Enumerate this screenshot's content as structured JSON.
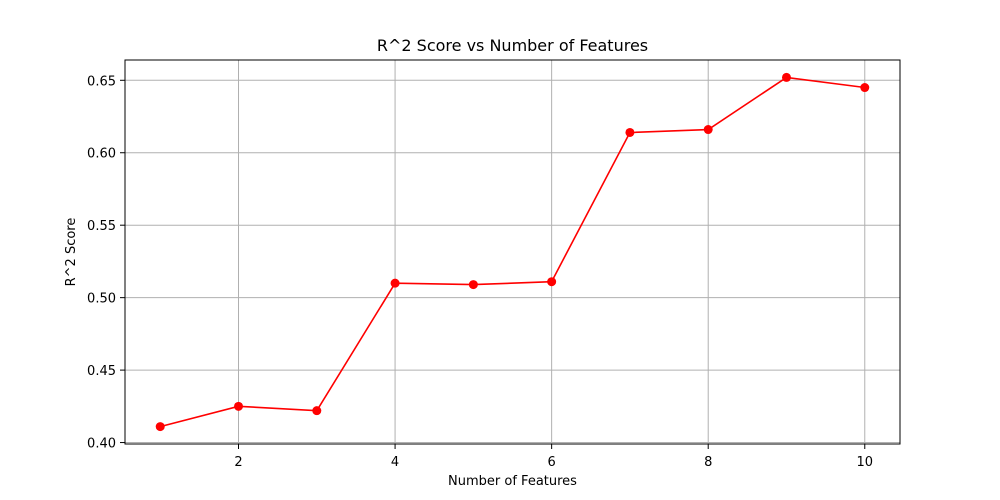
{
  "chart_data": {
    "type": "line",
    "title": "R^2 Score vs Number of Features",
    "xlabel": "Number of Features",
    "ylabel": "R^2 Score",
    "x": [
      1,
      2,
      3,
      4,
      5,
      6,
      7,
      8,
      9,
      10
    ],
    "series": [
      {
        "values": [
          0.411,
          0.425,
          0.422,
          0.51,
          0.509,
          0.511,
          0.614,
          0.616,
          0.652,
          0.645
        ],
        "color": "#ff0000",
        "marker": "circle"
      }
    ],
    "xticks": [
      2,
      4,
      6,
      8,
      10
    ],
    "xtick_labels": [
      "2",
      "4",
      "6",
      "8",
      "10"
    ],
    "yticks": [
      0.4,
      0.45,
      0.5,
      0.55,
      0.6,
      0.65
    ],
    "ytick_labels": [
      "0.40",
      "0.45",
      "0.50",
      "0.55",
      "0.60",
      "0.65"
    ],
    "xlim": [
      0.55,
      10.45
    ],
    "ylim": [
      0.399,
      0.664
    ],
    "grid": true,
    "legend": "none"
  }
}
